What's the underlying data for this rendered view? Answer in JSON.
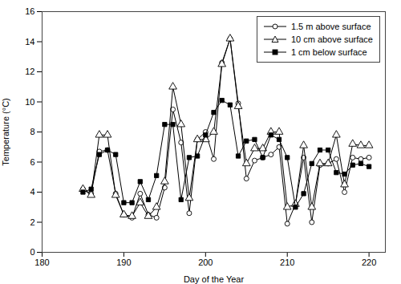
{
  "chart_data": {
    "type": "line",
    "xlabel": "Day of the Year",
    "ylabel": "Temperature (°C)",
    "x": [
      185,
      186,
      187,
      188,
      189,
      190,
      191,
      192,
      193,
      194,
      195,
      196,
      197,
      198,
      199,
      200,
      201,
      202,
      203,
      204,
      205,
      206,
      207,
      208,
      209,
      210,
      211,
      212,
      213,
      214,
      215,
      216,
      217,
      218,
      219,
      220
    ],
    "series": [
      {
        "name": "1.5 m above surface",
        "color": "black",
        "marker": "circle-open",
        "values": [
          4.2,
          3.9,
          6.7,
          6.8,
          3.9,
          2.5,
          2.3,
          3.9,
          2.5,
          2.3,
          4.3,
          9.5,
          7.3,
          2.6,
          7.5,
          8.0,
          6.2,
          12.6,
          14.2,
          9.9,
          4.9,
          6.1,
          6.3,
          6.5,
          7.0,
          1.9,
          3.2,
          6.3,
          2.0,
          5.8,
          5.9,
          6.2,
          4.0,
          6.3,
          6.2,
          6.3
        ]
      },
      {
        "name": "10 cm above surface",
        "color": "black",
        "marker": "triangle-open",
        "values": [
          4.2,
          3.8,
          7.8,
          7.8,
          3.8,
          2.5,
          2.4,
          3.3,
          2.4,
          3.0,
          4.7,
          11.0,
          8.5,
          3.6,
          7.5,
          7.5,
          8.0,
          12.5,
          14.2,
          9.7,
          5.9,
          6.9,
          6.9,
          8.0,
          8.0,
          3.0,
          3.2,
          7.1,
          3.0,
          5.9,
          5.9,
          7.8,
          4.5,
          7.2,
          7.1,
          7.1
        ]
      },
      {
        "name": "1 cm below surface",
        "color": "black",
        "marker": "square",
        "values": [
          4.0,
          4.2,
          6.5,
          6.8,
          6.5,
          3.3,
          3.3,
          4.7,
          3.5,
          5.1,
          8.5,
          8.5,
          3.5,
          6.3,
          6.4,
          7.8,
          9.3,
          10.1,
          9.8,
          6.4,
          7.4,
          7.5,
          6.3,
          7.8,
          7.5,
          6.3,
          3.0,
          3.9,
          5.9,
          6.8,
          6.8,
          5.3,
          5.2,
          5.8,
          5.9,
          5.7
        ]
      }
    ],
    "xlim": [
      180,
      222
    ],
    "ylim": [
      0,
      16
    ],
    "xticks": [
      180,
      190,
      200,
      210,
      220
    ],
    "yticks": [
      0,
      2,
      4,
      6,
      8,
      10,
      12,
      14,
      16
    ],
    "grid": false,
    "legend": "upper right"
  }
}
